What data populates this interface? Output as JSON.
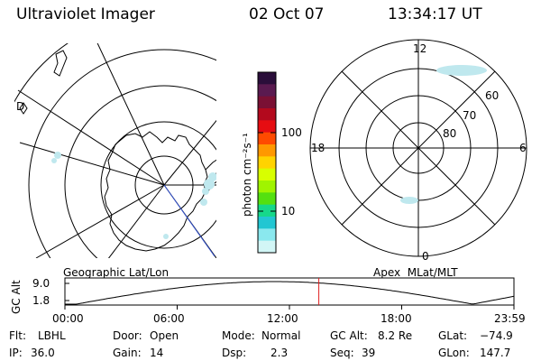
{
  "header": {
    "title": "Ultraviolet Imager",
    "date": "02 Oct 07",
    "time": "13:34:17 UT"
  },
  "colorbar": {
    "label": "photon cm⁻²s⁻¹",
    "tick_labels": [
      "100",
      "10"
    ],
    "scale": "log",
    "colors_top_to_bottom": [
      "#2a0e3a",
      "#5a1a50",
      "#7a1034",
      "#b3091d",
      "#e60d12",
      "#ff4a00",
      "#ff9800",
      "#ffd300",
      "#d8ff00",
      "#a0f400",
      "#54e010",
      "#16d88a",
      "#22c6d2",
      "#8ae8ee",
      "#d2f6f6"
    ]
  },
  "left_panel": {
    "label": "Geographic Lat/Lon",
    "edge_label": "D"
  },
  "right_panel": {
    "label": "Apex  MLat/MLT",
    "mlt_labels": [
      "12",
      "18",
      "6",
      "0"
    ],
    "mlat_labels": [
      "60",
      "70",
      "80"
    ]
  },
  "timeline": {
    "axis_label": "GC Alt",
    "y_ticks": [
      "9.0",
      "1.8"
    ],
    "x_ticks": [
      "00:00",
      "06:00",
      "12:00",
      "18:00",
      "23:59"
    ],
    "marker_time_hours": 13.57,
    "marker_color": "#e02020"
  },
  "stats": {
    "flt_label": "Flt:",
    "flt_value": "LBHL",
    "ip_label": "IP:",
    "ip_value": "36.0",
    "door_label": "Door:",
    "door_value": "Open",
    "gain_label": "Gain:",
    "gain_value": "14",
    "mode_label": "Mode:",
    "mode_value": "Normal",
    "dsp_label": "Dsp:",
    "dsp_value": "2.3",
    "gcalt_label": "GC Alt:",
    "gcalt_value": "8.2 Re",
    "seq_label": "Seq:",
    "seq_value": "39",
    "glat_label": "GLat:",
    "glat_value": "−74.9",
    "glon_label": "GLon:",
    "glon_value": "147.7"
  }
}
